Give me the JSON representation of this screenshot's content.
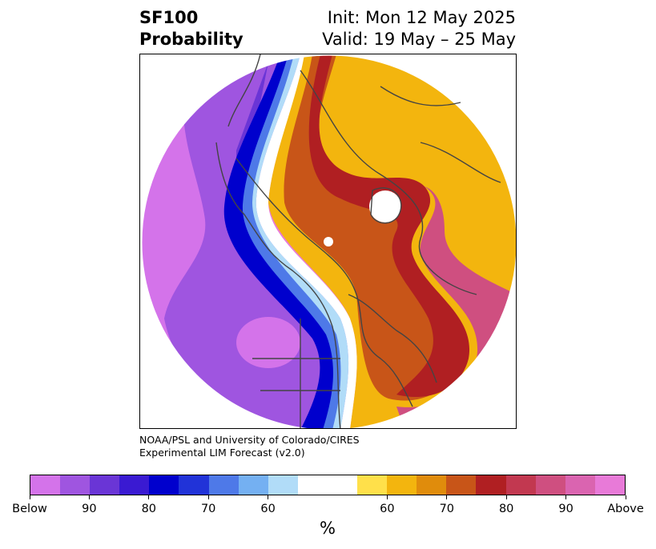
{
  "title": {
    "left_line1": "SF100",
    "left_line2": "Probability",
    "right_line1": "Init: Mon 12 May 2025",
    "right_line2": "Valid: 19 May – 25 May"
  },
  "credit": {
    "line1": "NOAA/PSL and University of Colorado/CIRES",
    "line2": "Experimental LIM Forecast (v2.0)"
  },
  "colorbar": {
    "colors": [
      "#d473ea",
      "#9f55e0",
      "#6a35d6",
      "#3a1ad2",
      "#0000cd",
      "#2133d8",
      "#4e79e8",
      "#74b0f2",
      "#b1dcf8",
      "#ffffff",
      "#ffffff",
      "#ffe04a",
      "#f3b50e",
      "#e08c0c",
      "#c85518",
      "#b01f22",
      "#c23850",
      "#cf4f80",
      "#da64b0",
      "#e87ad8"
    ],
    "labels": [
      "Below",
      "90",
      "80",
      "70",
      "60",
      "60",
      "70",
      "80",
      "90",
      "Above"
    ],
    "unit": "%"
  },
  "map": {
    "fill_colors": {
      "above": "#e87ad8",
      "below": "#d473ea",
      "below_mid": "#9f55e0",
      "below_strong": "#0000cd",
      "neutral": "#ffffff",
      "warm_low": "#f3b50e",
      "warm_mid": "#c85518",
      "warm_high": "#b01f22",
      "coastline": "#444444"
    }
  }
}
